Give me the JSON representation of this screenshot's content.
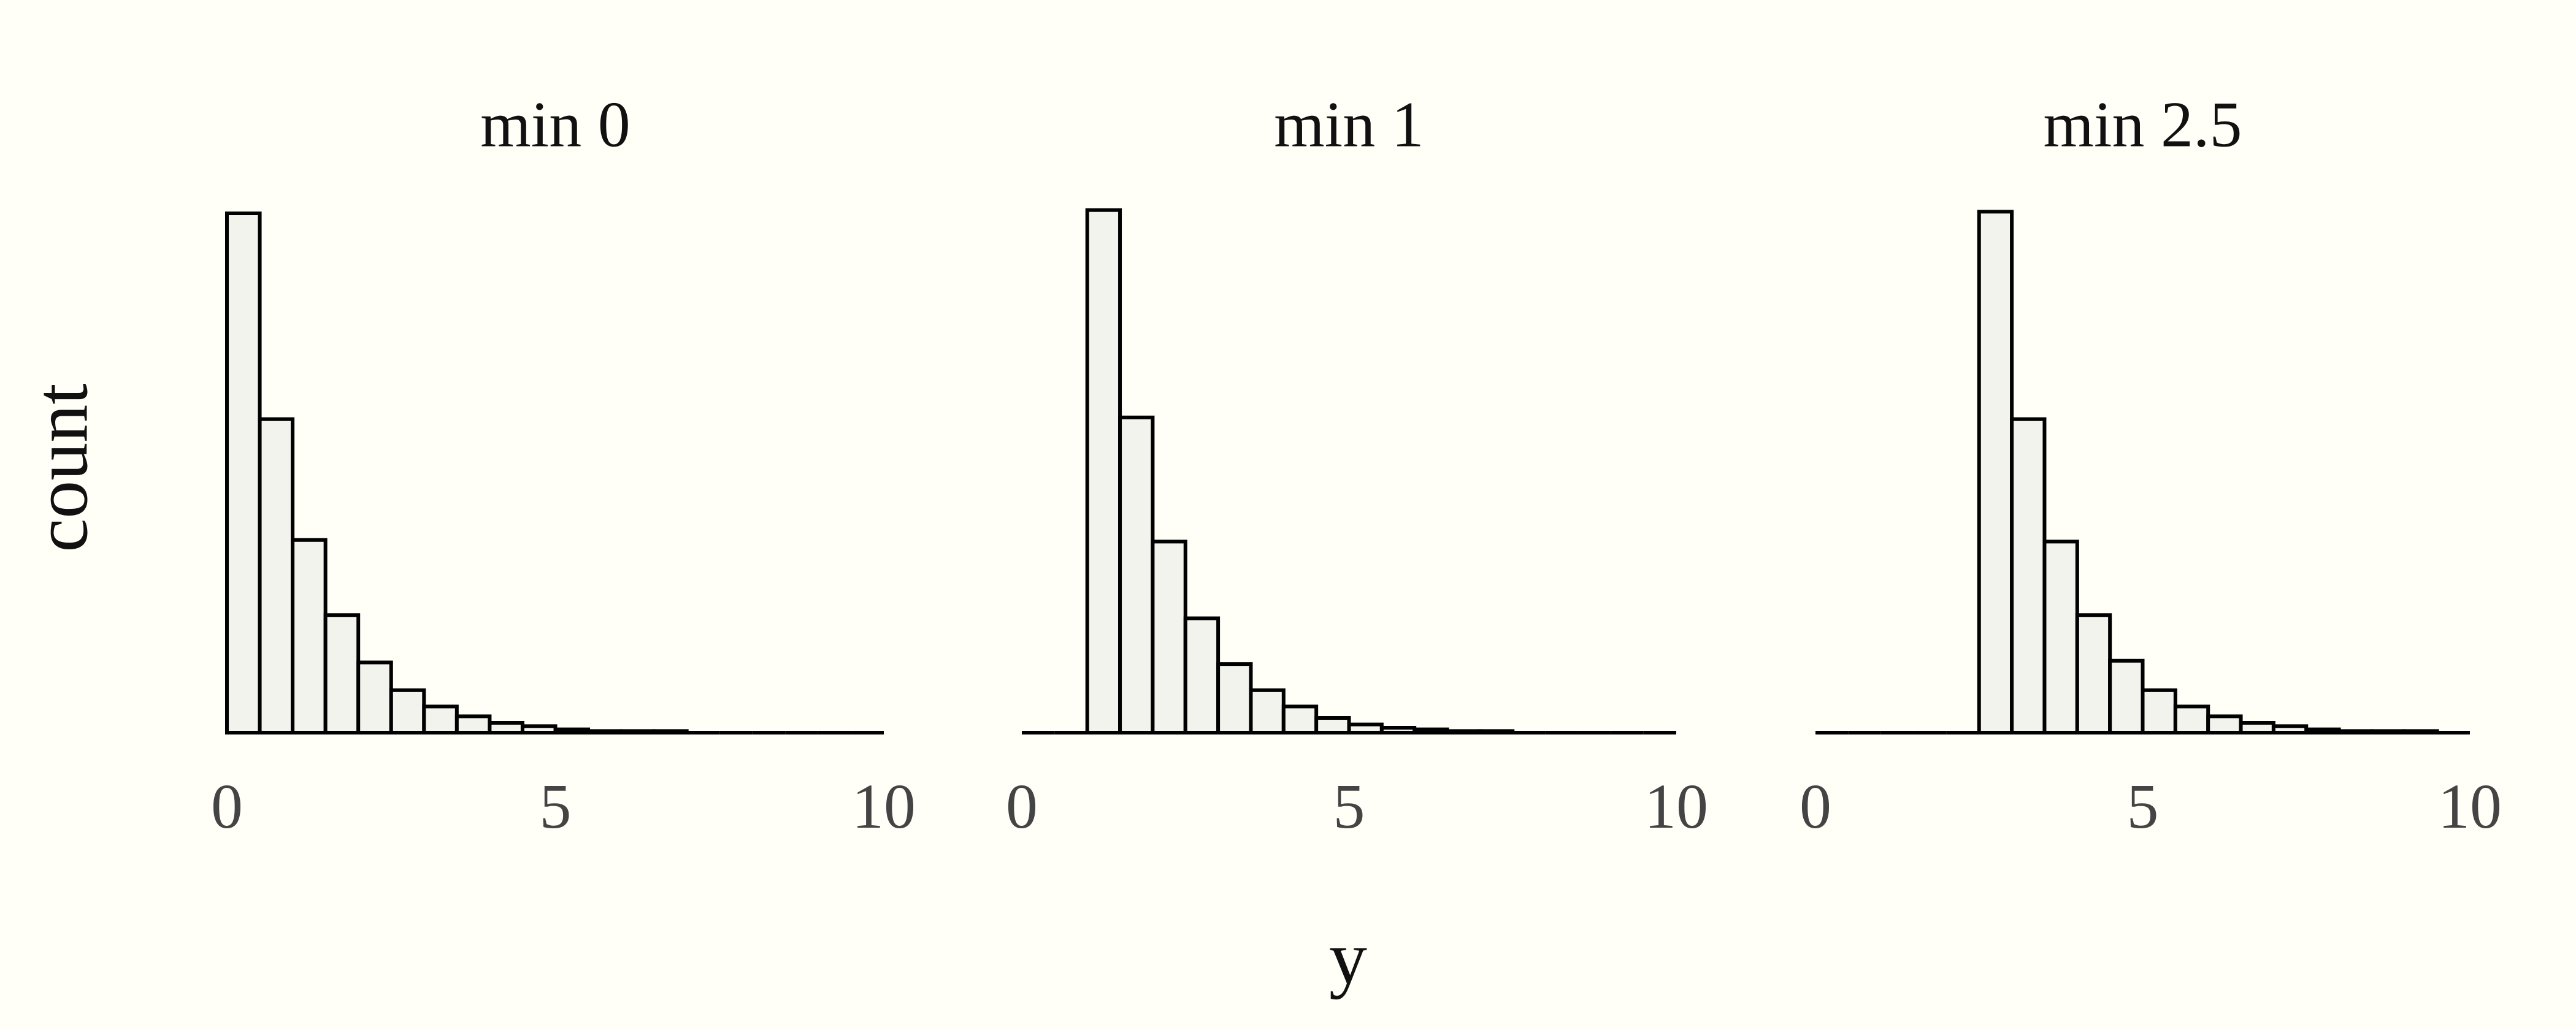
{
  "x_label": "y",
  "y_label": "count",
  "chart_data": [
    {
      "type": "histogram",
      "title": "min 0",
      "bins": [
        0,
        0.5,
        1,
        1.5,
        2,
        2.5,
        3,
        3.5,
        4,
        4.5,
        5,
        5.5,
        6,
        6.5,
        7,
        7.5,
        8,
        8.5,
        9,
        9.5,
        10
      ],
      "values": [
        318,
        192,
        118,
        72,
        43,
        26,
        16,
        10,
        6,
        4,
        2,
        1,
        1,
        1,
        0,
        0,
        0,
        0,
        0,
        0
      ],
      "xlim": [
        0,
        10
      ],
      "xticks": [
        0,
        5,
        10
      ],
      "ylim": [
        0,
        330
      ],
      "color": "#f2f3ec",
      "edge_color": "#000000"
    },
    {
      "type": "histogram",
      "title": "min 1",
      "bins": [
        0,
        0.5,
        1,
        1.5,
        2,
        2.5,
        3,
        3.5,
        4,
        4.5,
        5,
        5.5,
        6,
        6.5,
        7,
        7.5,
        8,
        8.5,
        9,
        9.5,
        10
      ],
      "values": [
        0,
        0,
        320,
        193,
        117,
        70,
        42,
        26,
        16,
        9,
        5,
        3,
        2,
        1,
        1,
        0,
        0,
        0,
        0,
        0
      ],
      "xlim": [
        0,
        10
      ],
      "xticks": [
        0,
        5,
        10
      ],
      "ylim": [
        0,
        330
      ],
      "color": "#f2f3ec",
      "edge_color": "#000000"
    },
    {
      "type": "histogram",
      "title": "min 2.5",
      "bins": [
        0,
        0.5,
        1,
        1.5,
        2,
        2.5,
        3,
        3.5,
        4,
        4.5,
        5,
        5.5,
        6,
        6.5,
        7,
        7.5,
        8,
        8.5,
        9,
        9.5,
        10
      ],
      "values": [
        0,
        0,
        0,
        0,
        0,
        319,
        192,
        117,
        72,
        44,
        26,
        16,
        10,
        6,
        4,
        2,
        1,
        1,
        1,
        0
      ],
      "xlim": [
        0,
        10
      ],
      "xticks": [
        0,
        5,
        10
      ],
      "ylim": [
        0,
        330
      ],
      "color": "#f2f3ec",
      "edge_color": "#000000"
    }
  ]
}
